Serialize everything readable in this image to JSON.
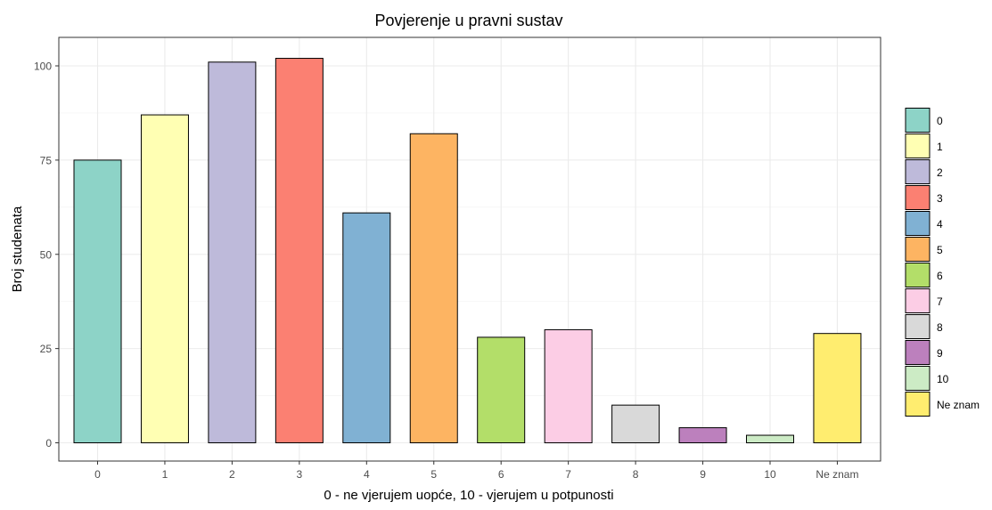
{
  "chart_data": {
    "type": "bar",
    "title": "Povjerenje u pravni sustav",
    "xlabel": "0 - ne vjerujem uopće, 10 - vjerujem u potpunosti",
    "ylabel": "Broj studenata",
    "categories": [
      "0",
      "1",
      "2",
      "3",
      "4",
      "5",
      "6",
      "7",
      "8",
      "9",
      "10",
      "Ne znam"
    ],
    "values": [
      75,
      87,
      101,
      102,
      61,
      82,
      28,
      30,
      10,
      4,
      2,
      29
    ],
    "colors": [
      "#8dd3c7",
      "#ffffb3",
      "#bebada",
      "#fb8072",
      "#80b1d3",
      "#fdb462",
      "#b3de69",
      "#fccde5",
      "#d9d9d9",
      "#bc80bd",
      "#ccebc5",
      "#ffed6f"
    ],
    "ylim": [
      0,
      107
    ],
    "yticks": [
      0,
      25,
      50,
      75,
      100
    ],
    "grid": true,
    "legend": {
      "position": "right",
      "entries": [
        "0",
        "1",
        "2",
        "3",
        "4",
        "5",
        "6",
        "7",
        "8",
        "9",
        "10",
        "Ne znam"
      ]
    }
  }
}
